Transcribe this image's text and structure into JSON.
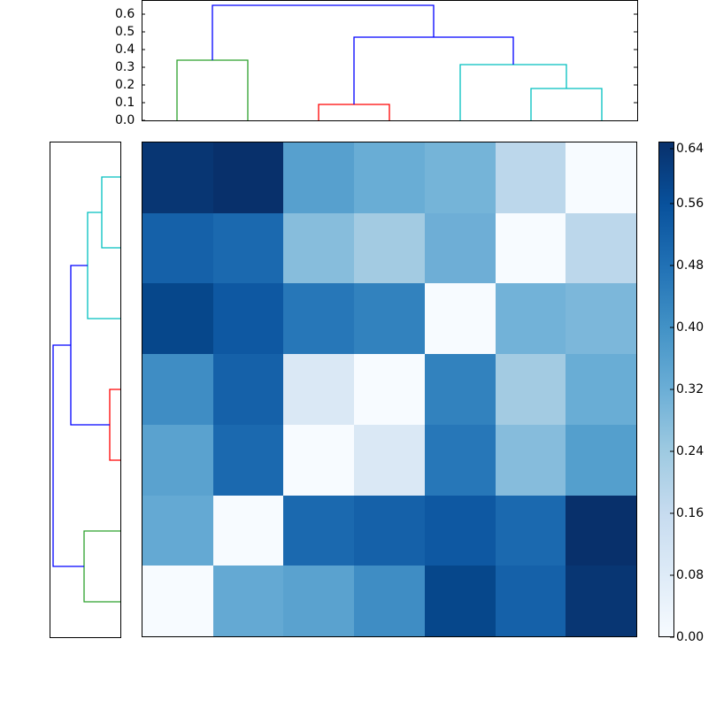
{
  "chart_data": {
    "type": "heatmap",
    "title": "",
    "colormap": "Blues",
    "color_range": [
      0.0,
      0.64
    ],
    "colorbar_ticks": [
      "0.00",
      "0.08",
      "0.16",
      "0.24",
      "0.32",
      "0.40",
      "0.48",
      "0.56",
      "0.64"
    ],
    "matrix": [
      [
        0.62,
        0.64,
        0.37,
        0.34,
        0.31,
        0.17,
        0.0
      ],
      [
        0.53,
        0.52,
        0.29,
        0.22,
        0.32,
        0.0,
        0.17
      ],
      [
        0.59,
        0.56,
        0.44,
        0.43,
        0.0,
        0.33,
        0.3
      ],
      [
        0.41,
        0.54,
        0.1,
        0.0,
        0.43,
        0.22,
        0.34
      ],
      [
        0.37,
        0.53,
        0.0,
        0.1,
        0.45,
        0.29,
        0.38
      ],
      [
        0.34,
        0.0,
        0.53,
        0.54,
        0.57,
        0.52,
        0.64
      ],
      [
        0.0,
        0.34,
        0.36,
        0.41,
        0.6,
        0.54,
        0.63
      ]
    ],
    "cell_colors": [
      [
        "#083673",
        "#08306b",
        "#57a0ce",
        "#69add5",
        "#75b4d8",
        "#bcd7eb",
        "#f7fbff"
      ],
      [
        "#1561a9",
        "#1b69af",
        "#87bddc",
        "#a3cbe2",
        "#6eaed6",
        "#f7fbff",
        "#bcd7eb"
      ],
      [
        "#06478b",
        "#0e58a2",
        "#2777b8",
        "#3282be",
        "#f7fbff",
        "#72b2d8",
        "#7cb7da"
      ],
      [
        "#3f8dc4",
        "#1561a9",
        "#dae8f5",
        "#f7fbff",
        "#3282be",
        "#a3cbe2",
        "#69add5"
      ],
      [
        "#5aa2cf",
        "#1b69af",
        "#f7fbff",
        "#dae8f5",
        "#2777b8",
        "#86bcdc",
        "#549fcd"
      ],
      [
        "#64a9d3",
        "#f7fbff",
        "#1b69af",
        "#1561a9",
        "#0e58a2",
        "#1b69af",
        "#08306b"
      ],
      [
        "#f7fbff",
        "#64a9d3",
        "#5aa2cf",
        "#3f8dc4",
        "#06478b",
        "#1561a9",
        "#083673"
      ]
    ],
    "top_dendrogram": {
      "ylabel": "",
      "yticks": [
        "0.0",
        "0.1",
        "0.2",
        "0.3",
        "0.4",
        "0.5",
        "0.6"
      ],
      "ylim": [
        0.0,
        0.67
      ],
      "links": [
        {
          "left": 0,
          "right": 1,
          "height": 0.34,
          "color": "#2ca02c"
        },
        {
          "left": 2,
          "right": 3,
          "height": 0.09,
          "color": "#ff0000"
        },
        {
          "left": 5,
          "right": 6,
          "height": 0.18,
          "color": "#00bfbf"
        },
        {
          "left": 4,
          "right": "5-6",
          "height": 0.31,
          "color": "#00bfbf"
        },
        {
          "left": "2-3",
          "right": "4-6",
          "height": 0.47,
          "color": "#0000ff"
        },
        {
          "left": "0-1",
          "right": "2-6",
          "height": 0.65,
          "color": "#0000ff"
        }
      ]
    },
    "left_dendrogram": {
      "orientation": "right",
      "links": [
        {
          "leaves": [
            0,
            1
          ],
          "height": 0.18,
          "color": "#00bfbf"
        },
        {
          "leaves": [
            "0-1",
            2
          ],
          "height": 0.31,
          "color": "#00bfbf"
        },
        {
          "leaves": [
            3,
            4
          ],
          "height": 0.09,
          "color": "#ff0000"
        },
        {
          "leaves": [
            "0-2",
            "3-4"
          ],
          "height": 0.47,
          "color": "#0000ff"
        },
        {
          "leaves": [
            5,
            6
          ],
          "height": 0.34,
          "color": "#2ca02c"
        },
        {
          "leaves": [
            "0-4",
            "5-6"
          ],
          "height": 0.65,
          "color": "#0000ff"
        }
      ]
    },
    "grid": false,
    "legend": "colorbar-right"
  }
}
